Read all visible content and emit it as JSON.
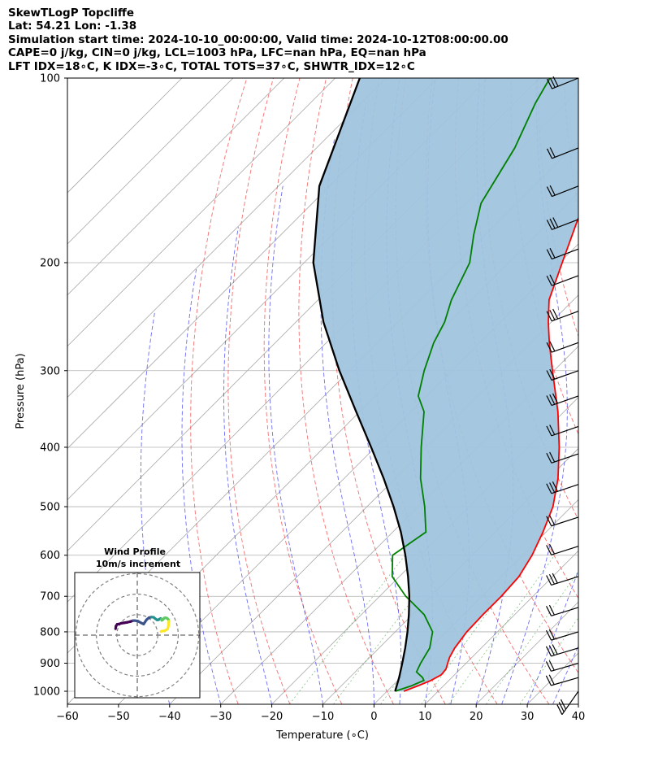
{
  "header": {
    "title_line": "SkewTLogP Topcliffe",
    "location_line": "Lat: 54.21   Lon: -1.38",
    "time_line": "Simulation start time: 2024-10-10_00:00:00, Valid time: 2024-10-12T08:00:00.00",
    "params_line": "CAPE=0 j/kg, CIN=0 j/kg, LCL=1003 hPa, LFC=nan hPa, EQ=nan hPa",
    "indices_line": "LFT IDX=18∘C, K IDX=-3∘C, TOTAL TOTS=37∘C, SHWTR_IDX=12∘C"
  },
  "chart_data": {
    "type": "line",
    "chart_kind": "skew-T log-P",
    "xlabel": "Temperature (∘C)",
    "ylabel": "Pressure (hPa)",
    "xlim": [
      -60,
      40
    ],
    "ylim": [
      1050,
      100
    ],
    "y_scale": "log",
    "x_ticks": [
      "−60",
      "−50",
      "−40",
      "−30",
      "−20",
      "−10",
      "0",
      "10",
      "20",
      "30",
      "40"
    ],
    "y_ticks": [
      "100",
      "200",
      "300",
      "400",
      "500",
      "600",
      "700",
      "800",
      "900",
      "1000"
    ],
    "grid": true,
    "fill_color": "#a0c4de",
    "series": [
      {
        "color": "#ff0000",
        "pressure": [
          1000,
          980,
          960,
          940,
          920,
          900,
          880,
          850,
          800,
          750,
          700,
          650,
          600,
          550,
          500,
          450,
          400,
          350,
          300,
          270,
          250,
          230,
          200,
          170,
          150,
          130,
          110,
          100
        ],
        "values": [
          3.3,
          5.0,
          6.5,
          7.4,
          7.2,
          6.4,
          5.6,
          4.8,
          4.0,
          3.8,
          3.8,
          3.4,
          1.8,
          -0.6,
          -3.6,
          -8.1,
          -14.0,
          -21.2,
          -30.3,
          -36.4,
          -40.6,
          -44.8,
          -49.5,
          -54.9,
          -58.5,
          -63.4,
          -68.8,
          -71.6
        ]
      },
      {
        "color": "#008000",
        "pressure": [
          1000,
          980,
          960,
          950,
          930,
          900,
          850,
          800,
          750,
          700,
          650,
          600,
          550,
          500,
          450,
          400,
          350,
          330,
          300,
          270,
          250,
          230,
          200,
          180,
          160,
          130,
          110,
          100
        ],
        "values": [
          1.6,
          3.7,
          5.1,
          4.3,
          2.0,
          1.1,
          -0.1,
          -2.7,
          -7.7,
          -14.9,
          -21.4,
          -25.5,
          -23.5,
          -28.7,
          -35.0,
          -41.0,
          -47.4,
          -51.6,
          -55.4,
          -59.0,
          -60.9,
          -63.9,
          -67.6,
          -72.3,
          -77.0,
          -81.2,
          -85.9,
          -88.0
        ]
      },
      {
        "color": "#000000",
        "pressure": [
          1000,
          950,
          900,
          850,
          800,
          750,
          700,
          650,
          600,
          550,
          500,
          450,
          400,
          350,
          300,
          250,
          200,
          150,
          100
        ],
        "values": [
          1.6,
          -0.3,
          -2.5,
          -4.9,
          -7.6,
          -10.7,
          -14.2,
          -18.3,
          -23.0,
          -28.4,
          -34.8,
          -42.2,
          -50.8,
          -60.7,
          -72.0,
          -84.6,
          -98.2,
          -112.0,
          -125.2
        ]
      }
    ],
    "wind_inset": {
      "title_line1": "Wind Profile",
      "title_line2": "10m/s increment",
      "path_colors": [
        "#440154",
        "#3b528b",
        "#21918c",
        "#5ec962",
        "#fde725"
      ],
      "u": [
        -10.6,
        -10.4,
        -9.8,
        -8.9,
        -7.8,
        -6.4,
        -4.7,
        -3.4,
        -2.0,
        -1.2,
        0.4,
        1.8,
        3.1,
        4.5,
        5.7,
        6.9,
        8.0,
        8.8,
        9.7,
        10.4,
        10.8,
        11.4,
        11.8,
        12.0,
        12.6,
        13.1,
        13.8,
        14.6,
        15.2,
        15.4,
        15.3,
        15.1,
        14.8,
        14.2,
        13.3,
        12.2,
        11.6
      ],
      "v": [
        3.1,
        4.4,
        5.3,
        5.4,
        5.8,
        6.0,
        6.3,
        6.6,
        7.1,
        7.1,
        6.8,
        6.0,
        5.4,
        7.5,
        8.5,
        8.8,
        8.7,
        8.0,
        7.4,
        7.5,
        7.8,
        8.1,
        7.8,
        7.2,
        7.6,
        8.3,
        8.5,
        8.2,
        7.6,
        6.8,
        5.2,
        4.0,
        3.0,
        2.6,
        2.1,
        2.0,
        1.8
      ]
    },
    "barb_pressures": [
      100,
      130,
      150,
      170,
      190,
      210,
      240,
      270,
      300,
      330,
      370,
      410,
      460,
      520,
      580,
      650,
      730,
      800,
      850,
      900,
      950,
      1000
    ]
  }
}
